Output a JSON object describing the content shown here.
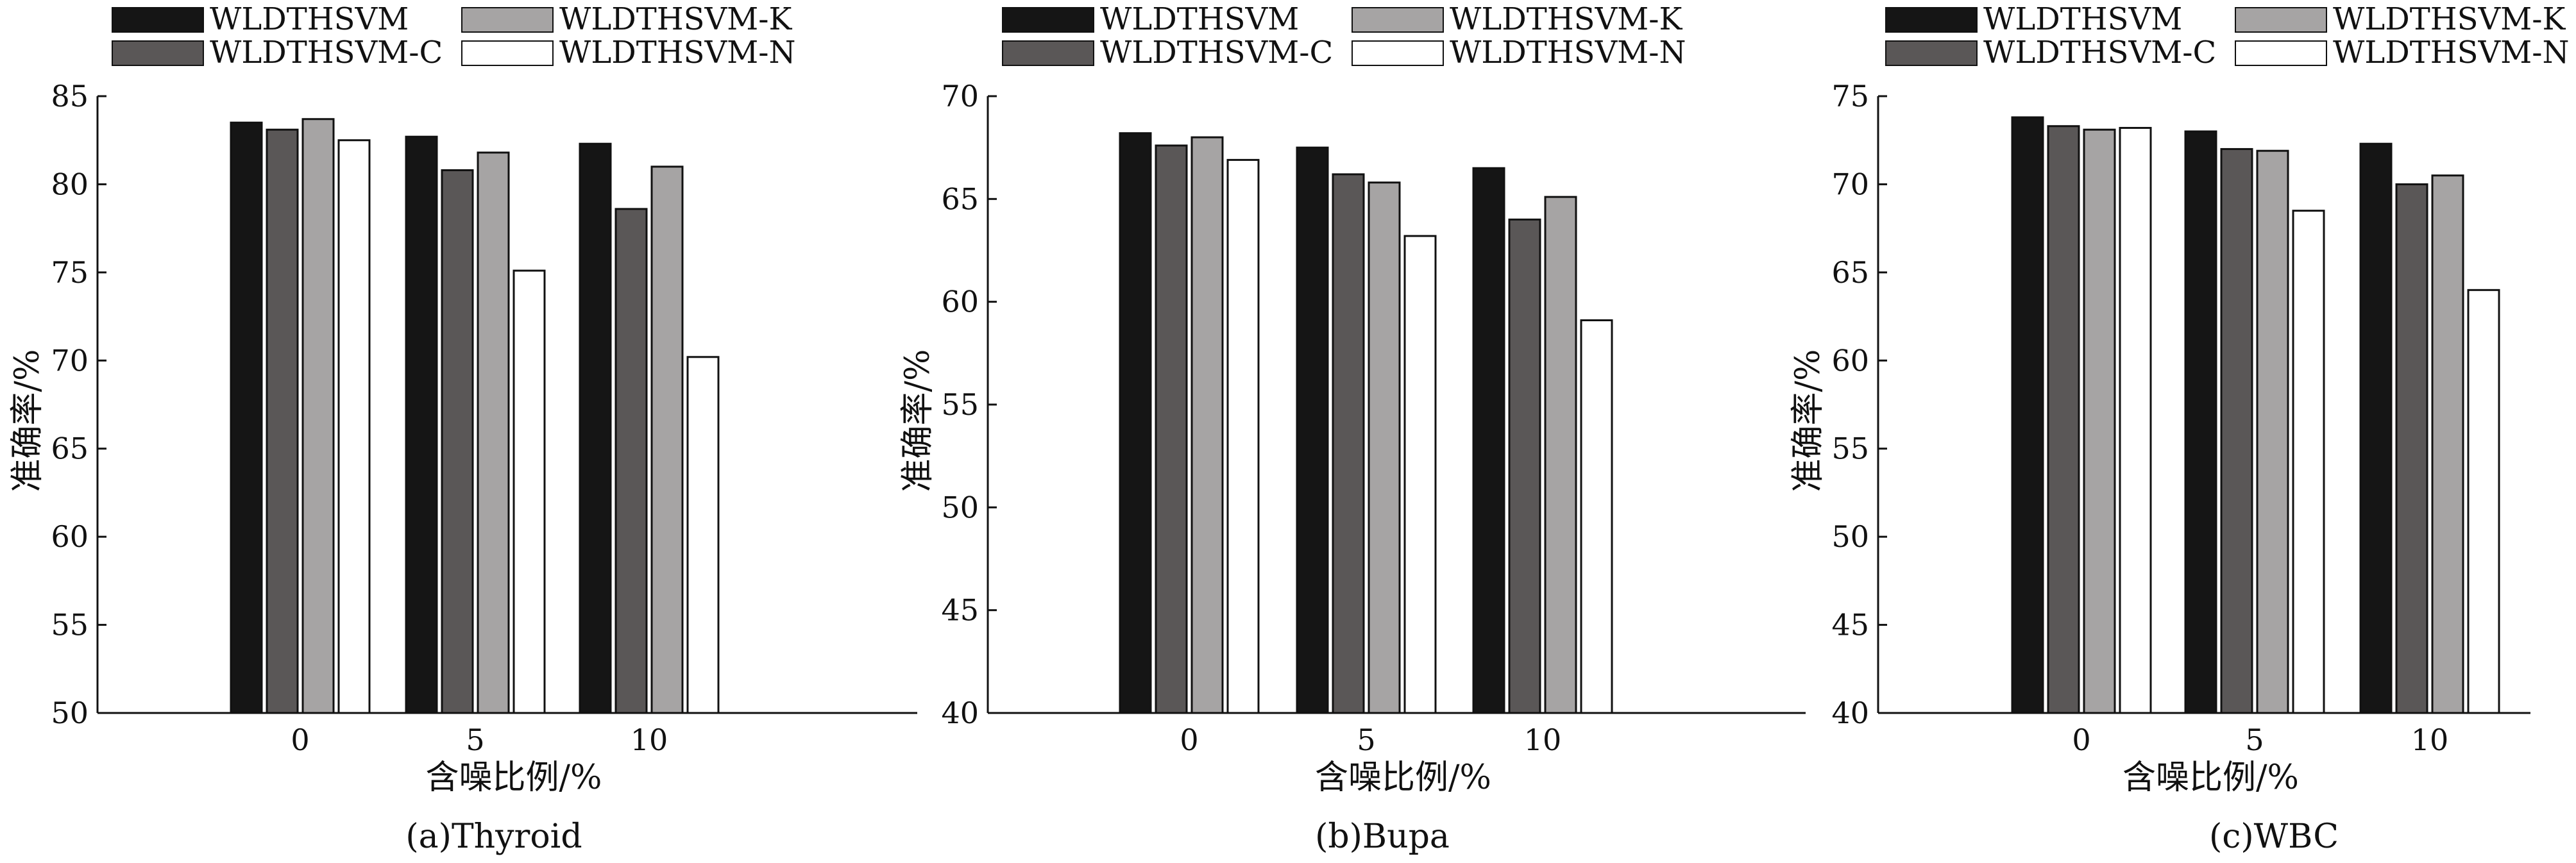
{
  "legend": {
    "series": [
      "WLDTHSVM",
      "WLDTHSVM-K",
      "WLDTHSVM-C",
      "WLDTHSVM-N"
    ],
    "colors": [
      "#151515",
      "#a6a4a4",
      "#5a5757",
      "#ffffff"
    ]
  },
  "chart_data": [
    {
      "type": "bar",
      "caption": "(a)Thyroid",
      "xlabel": "含噪比例/%",
      "ylabel": "准确率/%",
      "categories": [
        "0",
        "5",
        "10"
      ],
      "ylim": [
        50,
        85
      ],
      "yticks": [
        "50",
        "55",
        "60",
        "65",
        "70",
        "75",
        "80",
        "85"
      ],
      "series": [
        {
          "name": "WLDTHSVM",
          "values": [
            83.5,
            82.7,
            82.3
          ]
        },
        {
          "name": "WLDTHSVM-C",
          "values": [
            83.1,
            80.8,
            78.6
          ]
        },
        {
          "name": "WLDTHSVM-K",
          "values": [
            83.7,
            81.8,
            81.0
          ]
        },
        {
          "name": "WLDTHSVM-N",
          "values": [
            82.5,
            75.1,
            70.2
          ]
        }
      ]
    },
    {
      "type": "bar",
      "caption": "(b)Bupa",
      "xlabel": "含噪比例/%",
      "ylabel": "准确率/%",
      "categories": [
        "0",
        "5",
        "10"
      ],
      "ylim": [
        40,
        70
      ],
      "yticks": [
        "40",
        "45",
        "50",
        "55",
        "60",
        "65",
        "70"
      ],
      "series": [
        {
          "name": "WLDTHSVM",
          "values": [
            68.2,
            67.5,
            66.5
          ]
        },
        {
          "name": "WLDTHSVM-C",
          "values": [
            67.6,
            66.2,
            64.0
          ]
        },
        {
          "name": "WLDTHSVM-K",
          "values": [
            68.0,
            65.8,
            65.1
          ]
        },
        {
          "name": "WLDTHSVM-N",
          "values": [
            66.9,
            63.2,
            59.1
          ]
        }
      ]
    },
    {
      "type": "bar",
      "caption": "(c)WBC",
      "xlabel": "含噪比例/%",
      "ylabel": "准确率/%",
      "categories": [
        "0",
        "5",
        "10"
      ],
      "ylim": [
        40,
        75
      ],
      "yticks": [
        "40",
        "45",
        "50",
        "55",
        "60",
        "65",
        "70",
        "75"
      ],
      "series": [
        {
          "name": "WLDTHSVM",
          "values": [
            73.8,
            73.0,
            72.3
          ]
        },
        {
          "name": "WLDTHSVM-C",
          "values": [
            73.3,
            72.0,
            70.0
          ]
        },
        {
          "name": "WLDTHSVM-K",
          "values": [
            73.1,
            71.9,
            70.5
          ]
        },
        {
          "name": "WLDTHSVM-N",
          "values": [
            73.2,
            68.5,
            64.0
          ]
        }
      ]
    }
  ]
}
